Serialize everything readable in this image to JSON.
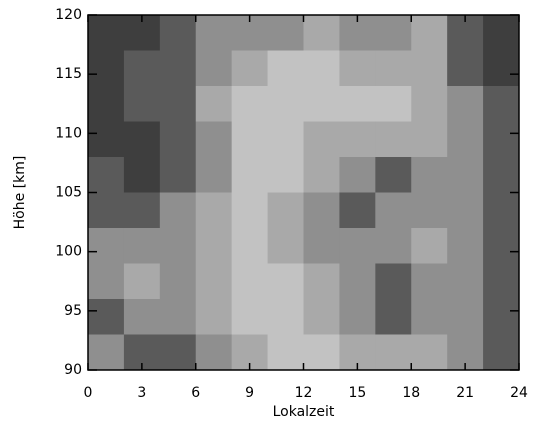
{
  "chart_data": {
    "type": "contour",
    "xlabel": "Lokalzeit",
    "ylabel": "Höhe [km]",
    "xlim": [
      0,
      24
    ],
    "xticks": [
      0,
      3,
      6,
      9,
      12,
      15,
      18,
      21,
      24
    ],
    "ylim": [
      90,
      120
    ],
    "yticks": [
      90,
      95,
      100,
      105,
      110,
      115,
      120
    ],
    "x": [
      1,
      3,
      5,
      7,
      9,
      11,
      13,
      15,
      17,
      19,
      21,
      23
    ],
    "y": [
      118.5,
      115.5,
      112.5,
      109.5,
      106.5,
      103.5,
      100.5,
      97.5,
      94.5,
      91.5
    ],
    "z": [
      [
        0,
        0,
        1,
        2,
        2,
        2,
        3,
        2,
        2,
        3,
        1,
        0
      ],
      [
        0,
        1,
        1,
        2,
        3,
        4,
        4,
        3,
        3,
        3,
        1,
        0
      ],
      [
        0,
        1,
        1,
        3,
        4,
        4,
        4,
        4,
        4,
        3,
        2,
        1
      ],
      [
        0,
        0,
        1,
        2,
        4,
        4,
        3,
        3,
        3,
        3,
        2,
        1
      ],
      [
        1,
        0,
        1,
        2,
        4,
        4,
        3,
        2,
        1,
        2,
        2,
        1
      ],
      [
        1,
        1,
        2,
        3,
        4,
        3,
        2,
        1,
        2,
        2,
        2,
        1
      ],
      [
        2,
        2,
        2,
        3,
        4,
        3,
        2,
        2,
        2,
        3,
        2,
        1
      ],
      [
        2,
        3,
        2,
        3,
        4,
        4,
        3,
        2,
        1,
        2,
        2,
        1
      ],
      [
        1,
        2,
        2,
        3,
        4,
        4,
        3,
        2,
        1,
        2,
        2,
        1
      ],
      [
        2,
        1,
        1,
        2,
        3,
        4,
        4,
        3,
        3,
        3,
        2,
        1
      ]
    ],
    "colors": [
      "#3e3e3e",
      "#5a5a5a",
      "#757575",
      "#8f8f8f",
      "#a9a9a9",
      "#c2c2c2"
    ]
  }
}
